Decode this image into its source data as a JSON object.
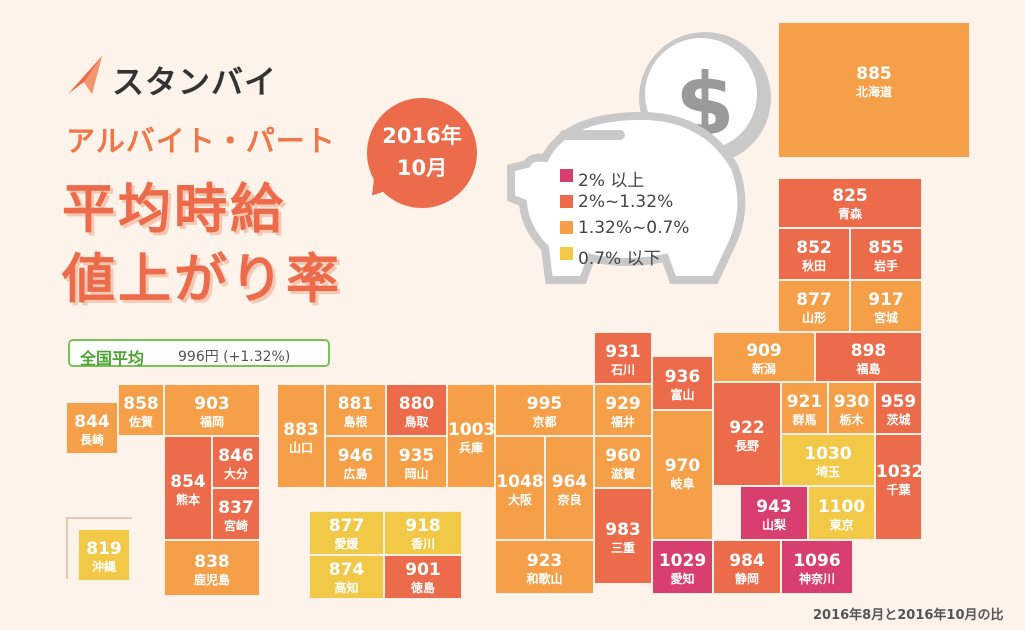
{
  "brand": {
    "name": "スタンバイ"
  },
  "header": {
    "subtitle": "アルバイト・パート",
    "title_line1": "平均時給",
    "title_line2": "値上がり率",
    "date_year": "2016年",
    "date_month": "10月"
  },
  "national_average": {
    "label": "全国平均",
    "value": "996円 (+1.32%)"
  },
  "legend": [
    {
      "label": "2% 以上",
      "color": "#d83f6e"
    },
    {
      "label": "2%~1.32%",
      "color": "#ec6b4a"
    },
    {
      "label": "1.32%~0.7%",
      "color": "#f5a048"
    },
    {
      "label": "0.7% 以下",
      "color": "#f2c946"
    }
  ],
  "prefectures": [
    {
      "name": "北海道",
      "value": "885"
    },
    {
      "name": "青森",
      "value": "825"
    },
    {
      "name": "秋田",
      "value": "852"
    },
    {
      "name": "岩手",
      "value": "855"
    },
    {
      "name": "山形",
      "value": "877"
    },
    {
      "name": "宮城",
      "value": "917"
    },
    {
      "name": "新潟",
      "value": "909"
    },
    {
      "name": "福島",
      "value": "898"
    },
    {
      "name": "石川",
      "value": "931"
    },
    {
      "name": "富山",
      "value": "936"
    },
    {
      "name": "群馬",
      "value": "921"
    },
    {
      "name": "栃木",
      "value": "930"
    },
    {
      "name": "茨城",
      "value": "959"
    },
    {
      "name": "長野",
      "value": "922"
    },
    {
      "name": "岐阜",
      "value": "970"
    },
    {
      "name": "埼玉",
      "value": "1030"
    },
    {
      "name": "千葉",
      "value": "1032"
    },
    {
      "name": "山梨",
      "value": "943"
    },
    {
      "name": "東京",
      "value": "1100"
    },
    {
      "name": "福井",
      "value": "929"
    },
    {
      "name": "京都",
      "value": "995"
    },
    {
      "name": "滋賀",
      "value": "960"
    },
    {
      "name": "三重",
      "value": "983"
    },
    {
      "name": "愛知",
      "value": "1029"
    },
    {
      "name": "静岡",
      "value": "984"
    },
    {
      "name": "神奈川",
      "value": "1096"
    },
    {
      "name": "兵庫",
      "value": "1003"
    },
    {
      "name": "大阪",
      "value": "1048"
    },
    {
      "name": "奈良",
      "value": "964"
    },
    {
      "name": "和歌山",
      "value": "923"
    },
    {
      "name": "島根",
      "value": "881"
    },
    {
      "name": "鳥取",
      "value": "880"
    },
    {
      "name": "山口",
      "value": "883"
    },
    {
      "name": "広島",
      "value": "946"
    },
    {
      "name": "岡山",
      "value": "935"
    },
    {
      "name": "愛媛",
      "value": "877"
    },
    {
      "name": "香川",
      "value": "918"
    },
    {
      "name": "高知",
      "value": "874"
    },
    {
      "name": "徳島",
      "value": "901"
    },
    {
      "name": "長崎",
      "value": "844"
    },
    {
      "name": "佐賀",
      "value": "858"
    },
    {
      "name": "福岡",
      "value": "903"
    },
    {
      "name": "大分",
      "value": "846"
    },
    {
      "name": "熊本",
      "value": "854"
    },
    {
      "name": "宮崎",
      "value": "837"
    },
    {
      "name": "鹿児島",
      "value": "838"
    },
    {
      "name": "沖縄",
      "value": "819"
    }
  ],
  "footnote": "2016年8月と2016年10月の比"
}
